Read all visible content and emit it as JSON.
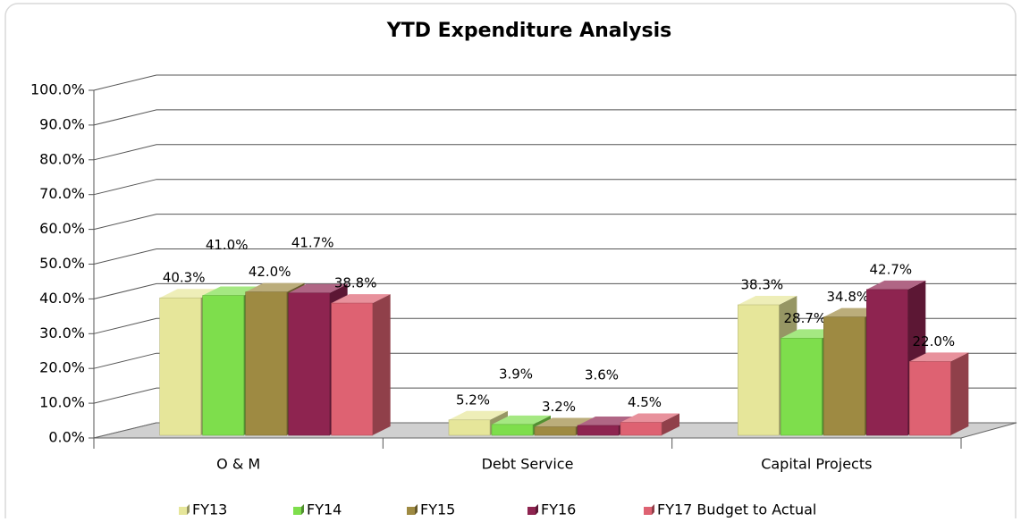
{
  "chart_data": {
    "type": "bar3d",
    "title": "YTD Expenditure Analysis",
    "categories": [
      "O & M",
      "Debt Service",
      "Capital Projects"
    ],
    "series": [
      {
        "name": "FY13",
        "color": "#e6e69a",
        "values": [
          40.3,
          5.2,
          38.3
        ],
        "value_labels": [
          "40.3%",
          "5.2%",
          "38.3%"
        ]
      },
      {
        "name": "FY14",
        "color": "#7ede4c",
        "values": [
          41.0,
          3.9,
          28.7
        ],
        "value_labels": [
          "41.0%",
          "3.9%",
          "28.7%"
        ]
      },
      {
        "name": "FY15",
        "color": "#9e8a42",
        "values": [
          42.0,
          3.2,
          34.8
        ],
        "value_labels": [
          "42.0%",
          "3.2%",
          "34.8%"
        ]
      },
      {
        "name": "FY16",
        "color": "#8e2450",
        "values": [
          41.7,
          3.6,
          42.7
        ],
        "value_labels": [
          "41.7%",
          "3.6%",
          "42.7%"
        ]
      },
      {
        "name": "FY17 Budget to Actual",
        "color": "#de6272",
        "values": [
          38.8,
          4.5,
          22.0
        ],
        "value_labels": [
          "38.8%",
          "4.5%",
          "22.0%"
        ]
      }
    ],
    "ylim": [
      0,
      100
    ],
    "yticks": [
      {
        "value": 0,
        "label": "0.0%"
      },
      {
        "value": 10,
        "label": "10.0%"
      },
      {
        "value": 20,
        "label": "20.0%"
      },
      {
        "value": 30,
        "label": "30.0%"
      },
      {
        "value": 40,
        "label": "40.0%"
      },
      {
        "value": 50,
        "label": "50.0%"
      },
      {
        "value": 60,
        "label": "60.0%"
      },
      {
        "value": 70,
        "label": "70.0%"
      },
      {
        "value": 80,
        "label": "80.0%"
      },
      {
        "value": 90,
        "label": "90.0%"
      },
      {
        "value": 100,
        "label": "100.0%"
      }
    ],
    "grid": true,
    "legend": "bottom"
  }
}
